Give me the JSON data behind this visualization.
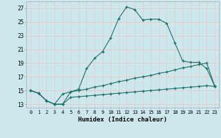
{
  "xlabel": "Humidex (Indice chaleur)",
  "background_color": "#cce8ec",
  "grid_color": "#e8c8c8",
  "line_color": "#1a6e6a",
  "x_values": [
    0,
    1,
    2,
    3,
    4,
    5,
    6,
    7,
    8,
    9,
    10,
    11,
    12,
    13,
    14,
    15,
    16,
    17,
    18,
    19,
    20,
    21,
    22,
    23
  ],
  "line1_y": [
    15.0,
    14.6,
    13.5,
    13.0,
    13.0,
    14.8,
    15.2,
    18.2,
    19.7,
    20.7,
    22.7,
    25.5,
    27.2,
    26.8,
    25.3,
    25.4,
    25.4,
    24.8,
    22.0,
    19.3,
    19.1,
    19.1,
    18.2,
    15.6
  ],
  "line2_y": [
    15.0,
    14.6,
    13.5,
    13.0,
    14.5,
    14.8,
    15.0,
    15.2,
    15.5,
    15.7,
    16.0,
    16.3,
    16.5,
    16.8,
    17.0,
    17.2,
    17.5,
    17.7,
    18.0,
    18.3,
    18.5,
    18.8,
    19.0,
    15.6
  ],
  "line3_y": [
    15.0,
    14.6,
    13.5,
    13.0,
    13.0,
    14.0,
    14.1,
    14.2,
    14.3,
    14.4,
    14.5,
    14.6,
    14.7,
    14.8,
    14.9,
    15.0,
    15.1,
    15.2,
    15.3,
    15.4,
    15.5,
    15.6,
    15.7,
    15.6
  ],
  "ylim": [
    12.5,
    28.0
  ],
  "yticks": [
    13,
    15,
    17,
    19,
    21,
    23,
    25,
    27
  ],
  "xticks": [
    0,
    1,
    2,
    3,
    4,
    5,
    6,
    7,
    8,
    9,
    10,
    11,
    12,
    13,
    14,
    15,
    16,
    17,
    18,
    19,
    20,
    21,
    22,
    23
  ]
}
